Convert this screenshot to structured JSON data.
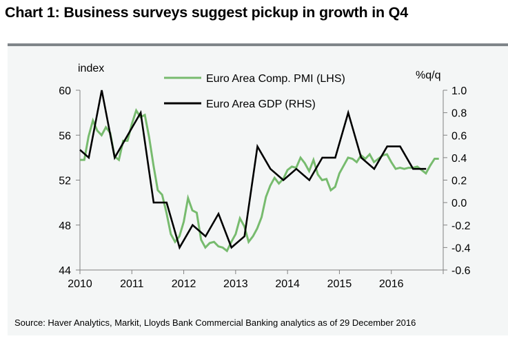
{
  "title": "Chart 1: Business surveys suggest pickup in growth in Q4",
  "source": "Source: Haver Analytics, Markit, Lloyds Bank Commercial Banking analytics as of 29 December 2016",
  "colors": {
    "pmi": "#77bb6e",
    "gdp": "#000000",
    "axis": "#808080",
    "background": "#f4f6f6",
    "topbar": "#7f8589"
  },
  "chart_data": {
    "type": "line",
    "title": "Chart 1: Business surveys suggest pickup in growth in Q4",
    "xlabel": "",
    "ylabel_left": "index",
    "ylabel_right": "%q/q",
    "xlim": [
      2010,
      2017
    ],
    "ylim_left": [
      44,
      60
    ],
    "ylim_right": [
      -0.6,
      1.0
    ],
    "x_ticks": [
      2010,
      2011,
      2012,
      2013,
      2014,
      2015,
      2016,
      2017
    ],
    "x_tick_labels": [
      "2010",
      "2011",
      "2012",
      "2013",
      "2014",
      "2015",
      "2016",
      ""
    ],
    "y_ticks_left": [
      60,
      56,
      52,
      48,
      44
    ],
    "y_tick_labels_left": [
      "60",
      "56",
      "52",
      "48",
      "44"
    ],
    "y_ticks_right": [
      1.0,
      0.8,
      0.6,
      0.4,
      0.2,
      0.0,
      -0.2,
      -0.4,
      -0.6
    ],
    "y_tick_labels_right": [
      "1.0",
      "0.8",
      "0.6",
      "0.4",
      "0.2",
      "0.0",
      "-0.2",
      "-0.4",
      "-0.6"
    ],
    "grid": false,
    "legend_position": "top-center",
    "series": [
      {
        "name": "Euro Area Comp. PMI (LHS)",
        "axis": "left",
        "color": "#77bb6e",
        "frequency": "monthly",
        "start": 2010.0,
        "values": [
          53.8,
          53.8,
          55.9,
          57.3,
          56.4,
          56.0,
          56.7,
          56.2,
          54.1,
          53.8,
          55.5,
          55.5,
          57.0,
          58.2,
          57.6,
          57.8,
          55.8,
          53.3,
          51.1,
          50.7,
          49.1,
          47.2,
          46.5,
          47.0,
          48.3,
          50.4,
          49.3,
          49.1,
          46.7,
          46.0,
          46.4,
          46.5,
          46.1,
          46.0,
          45.7,
          46.5,
          47.2,
          48.6,
          47.9,
          46.5,
          47.0,
          47.7,
          48.7,
          50.5,
          51.5,
          52.2,
          51.7,
          52.1,
          52.9,
          53.2,
          53.1,
          54.0,
          53.5,
          52.8,
          53.8,
          52.5,
          52.0,
          52.1,
          51.1,
          51.4,
          52.6,
          53.3,
          54.0,
          53.9,
          53.6,
          54.2,
          53.9,
          54.3,
          53.6,
          53.9,
          54.2,
          54.3,
          53.6,
          53.0,
          53.1,
          53.0,
          53.1,
          53.1,
          53.2,
          52.9,
          52.6,
          53.3,
          53.9,
          53.9
        ]
      },
      {
        "name": "Euro Area GDP (RHS)",
        "axis": "right",
        "color": "#000000",
        "frequency": "quarterly",
        "x": [
          2010.0,
          2010.17,
          2010.42,
          2010.67,
          2011.17,
          2011.42,
          2011.67,
          2011.92,
          2012.17,
          2012.42,
          2012.67,
          2012.92,
          2013.17,
          2013.42,
          2013.67,
          2013.92,
          2014.17,
          2014.42,
          2014.67,
          2014.92,
          2015.17,
          2015.42,
          2015.67,
          2015.92,
          2016.17,
          2016.42,
          2016.67
        ],
        "values": [
          0.47,
          0.4,
          1.0,
          0.4,
          0.8,
          0.0,
          0.0,
          -0.4,
          -0.2,
          -0.3,
          -0.1,
          -0.4,
          -0.3,
          0.5,
          0.3,
          0.2,
          0.3,
          0.2,
          0.4,
          0.4,
          0.8,
          0.4,
          0.3,
          0.5,
          0.5,
          0.3,
          0.3
        ]
      }
    ]
  }
}
